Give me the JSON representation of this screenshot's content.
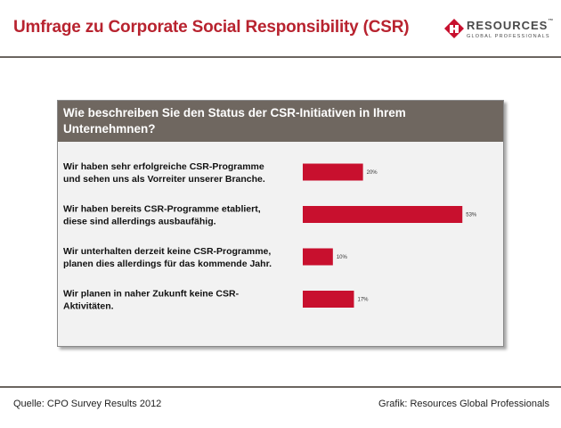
{
  "slide": {
    "title": "Umfrage zu Corporate Social Responsibility (CSR)",
    "footer_source": "Quelle: CPO Survey Results 2012",
    "footer_credit": "Grafik: Resources Global Professionals"
  },
  "logo": {
    "name": "RESOURCES",
    "trademark": "™",
    "tagline": "GLOBAL PROFESSIONALS",
    "icon": "resources-logo-icon",
    "color": "#c8102e"
  },
  "colors": {
    "title": "#b8232f",
    "bar": "#c8102e",
    "header_bg": "#6f6760",
    "rule": "#6b6560"
  },
  "chart_data": {
    "type": "bar",
    "orientation": "horizontal",
    "title": "Wie beschreiben Sie den Status der CSR-Initiativen in Ihrem Unternehmnen?",
    "categories": [
      [
        "Wir haben sehr erfolgreiche CSR-Programme",
        "und sehen uns als Vorreiter unserer Branche."
      ],
      [
        "Wir haben bereits CSR-Programme etabliert,",
        "diese sind allerdings ausbaufähig."
      ],
      [
        "Wir unterhalten derzeit keine CSR-Programme,",
        "planen dies allerdings für das kommende Jahr."
      ],
      [
        "Wir planen in naher Zukunft keine CSR-",
        "Aktivitäten."
      ]
    ],
    "values": [
      20,
      53,
      10,
      17
    ],
    "value_labels": [
      "20%",
      "53%",
      "10%",
      "17%"
    ],
    "unit": "%",
    "xlim": [
      0,
      55
    ],
    "grid": false,
    "legend": "none"
  }
}
